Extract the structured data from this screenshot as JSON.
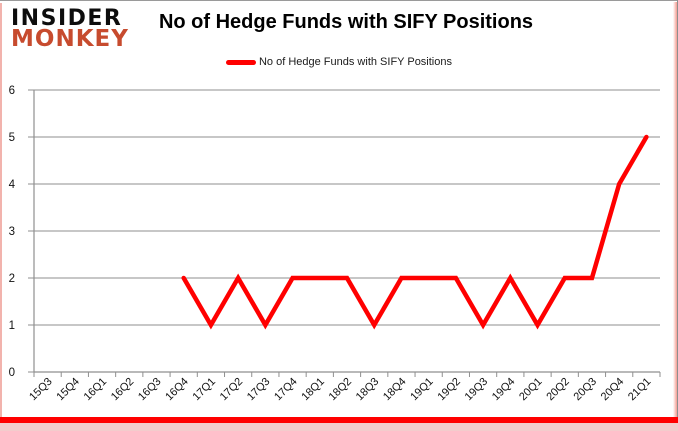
{
  "logo": {
    "line1": "INSIDER",
    "line2": "MONKEY"
  },
  "header": {
    "title": "No of Hedge Funds with SIFY Positions"
  },
  "legend": {
    "label": "No of Hedge Funds with SIFY Positions",
    "swatch_color": "#ff0000"
  },
  "colors": {
    "logo_red": "#c74b2e",
    "frame_bottom_red": "#ff0000",
    "frame_bottom_pink": "#f3cccc",
    "border_gray": "#9a9a9a"
  },
  "chart_style": {
    "grid_color": "#8f8f8f",
    "axis_color": "#707070",
    "tick_label_color": "#111111",
    "line_width": 4.5
  },
  "chart_data": {
    "type": "line",
    "title": "No of Hedge Funds with SIFY Positions",
    "categories": [
      "15Q3",
      "15Q4",
      "16Q1",
      "16Q2",
      "16Q3",
      "16Q4",
      "17Q1",
      "17Q2",
      "17Q3",
      "17Q4",
      "18Q1",
      "18Q2",
      "18Q3",
      "18Q4",
      "19Q1",
      "19Q2",
      "19Q3",
      "19Q4",
      "20Q1",
      "20Q2",
      "20Q3",
      "20Q4",
      "21Q1"
    ],
    "series": [
      {
        "name": "No of Hedge Funds with SIFY Positions",
        "color": "#ff0000",
        "values": [
          null,
          null,
          null,
          null,
          null,
          2,
          1,
          2,
          1,
          2,
          2,
          2,
          1,
          2,
          2,
          2,
          1,
          2,
          1,
          2,
          2,
          4,
          5
        ]
      }
    ],
    "xlabel": "",
    "ylabel": "",
    "ylim": [
      0,
      6
    ],
    "yticks": [
      0,
      1,
      2,
      3,
      4,
      5,
      6
    ],
    "grid": "horizontal",
    "legend_position": "top"
  }
}
